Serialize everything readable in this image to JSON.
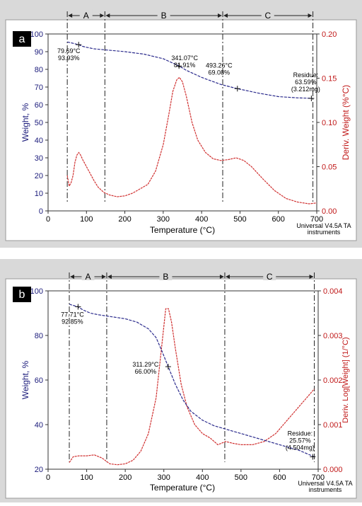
{
  "chart_data": [
    {
      "panel_label": "a",
      "type": "line",
      "xlabel": "Temperature (°C)",
      "ylabel": "Weight, %",
      "y2label": "Deriv. Weight (%°C)",
      "xlim": [
        0,
        700
      ],
      "ylim": [
        0,
        100
      ],
      "y2lim": [
        0,
        0.2
      ],
      "x_ticks": [
        "0",
        "100",
        "200",
        "300",
        "400",
        "500",
        "600",
        "700"
      ],
      "y_ticks": [
        "0",
        "10",
        "20",
        "30",
        "40",
        "50",
        "60",
        "70",
        "80",
        "90",
        "100"
      ],
      "y2_ticks": [
        "0.00",
        "0.05",
        "0.10",
        "0.15",
        "0.20"
      ],
      "regions": [
        {
          "label": "A",
          "from": 50,
          "to": 148
        },
        {
          "label": "B",
          "from": 148,
          "to": 455
        },
        {
          "label": "C",
          "from": 455,
          "to": 690
        }
      ],
      "weight_series": {
        "color": "#2a2a8c",
        "points": [
          [
            50,
            95.5
          ],
          [
            60,
            95
          ],
          [
            70,
            94.5
          ],
          [
            79.69,
            93.93
          ],
          [
            90,
            93
          ],
          [
            100,
            92.5
          ],
          [
            120,
            91.6
          ],
          [
            150,
            91
          ],
          [
            200,
            90
          ],
          [
            250,
            88.6
          ],
          [
            300,
            86
          ],
          [
            341.07,
            81.91
          ],
          [
            360,
            79.5
          ],
          [
            400,
            75.5
          ],
          [
            450,
            71.5
          ],
          [
            493.26,
            69.08
          ],
          [
            550,
            66.5
          ],
          [
            600,
            64.6
          ],
          [
            650,
            63.9
          ],
          [
            690,
            63.59
          ]
        ]
      },
      "deriv_series": {
        "color": "#d03030",
        "points": [
          [
            50,
            0.04
          ],
          [
            55,
            0.028
          ],
          [
            60,
            0.032
          ],
          [
            65,
            0.04
          ],
          [
            70,
            0.055
          ],
          [
            75,
            0.063
          ],
          [
            80,
            0.066
          ],
          [
            85,
            0.063
          ],
          [
            90,
            0.058
          ],
          [
            100,
            0.05
          ],
          [
            110,
            0.042
          ],
          [
            120,
            0.034
          ],
          [
            130,
            0.027
          ],
          [
            145,
            0.021
          ],
          [
            160,
            0.018
          ],
          [
            180,
            0.016
          ],
          [
            200,
            0.017
          ],
          [
            220,
            0.02
          ],
          [
            240,
            0.025
          ],
          [
            260,
            0.03
          ],
          [
            280,
            0.045
          ],
          [
            300,
            0.075
          ],
          [
            315,
            0.11
          ],
          [
            325,
            0.135
          ],
          [
            335,
            0.148
          ],
          [
            342,
            0.151
          ],
          [
            350,
            0.146
          ],
          [
            360,
            0.13
          ],
          [
            375,
            0.1
          ],
          [
            390,
            0.08
          ],
          [
            410,
            0.066
          ],
          [
            430,
            0.059
          ],
          [
            450,
            0.057
          ],
          [
            470,
            0.058
          ],
          [
            490,
            0.06
          ],
          [
            510,
            0.057
          ],
          [
            530,
            0.05
          ],
          [
            560,
            0.036
          ],
          [
            590,
            0.023
          ],
          [
            620,
            0.014
          ],
          [
            650,
            0.01
          ],
          [
            680,
            0.008
          ],
          [
            700,
            0.009
          ]
        ]
      },
      "annotations": [
        {
          "temp": "79.69°C",
          "weight": "93.93%"
        },
        {
          "temp": "341.07°C",
          "weight": "81.91%"
        },
        {
          "temp": "493.26°C",
          "weight": "69.08%"
        },
        {
          "temp": "Residue:",
          "weight": "63.59%",
          "mass": "(3.212mg)"
        }
      ],
      "footnote": [
        "Universal V4.5A TA",
        "instruments"
      ]
    },
    {
      "panel_label": "b",
      "type": "line",
      "xlabel": "Temperature (°C)",
      "ylabel": "Weight, %",
      "y2label": "Deriv. Log[Weight] (1/°C)",
      "xlim": [
        0,
        700
      ],
      "ylim": [
        20,
        100
      ],
      "y2lim": [
        0,
        0.004
      ],
      "x_ticks": [
        "0",
        "100",
        "200",
        "300",
        "400",
        "500",
        "600",
        "700"
      ],
      "y_ticks": [
        "20",
        "40",
        "60",
        "80",
        "100"
      ],
      "y2_ticks": [
        "0.000",
        "0.001",
        "0.002",
        "0.003",
        "0.004"
      ],
      "regions": [
        {
          "label": "A",
          "from": 55,
          "to": 152
        },
        {
          "label": "B",
          "from": 152,
          "to": 458
        },
        {
          "label": "C",
          "from": 458,
          "to": 690
        }
      ],
      "weight_series": {
        "color": "#2a2a8c",
        "points": [
          [
            55,
            94
          ],
          [
            65,
            93.5
          ],
          [
            77.71,
            92.85
          ],
          [
            90,
            91.5
          ],
          [
            110,
            90
          ],
          [
            130,
            89.3
          ],
          [
            160,
            88.5
          ],
          [
            200,
            87.5
          ],
          [
            230,
            86
          ],
          [
            260,
            83
          ],
          [
            280,
            79
          ],
          [
            295,
            73
          ],
          [
            311.29,
            66
          ],
          [
            330,
            58
          ],
          [
            350,
            51
          ],
          [
            370,
            46
          ],
          [
            400,
            42
          ],
          [
            430,
            39.5
          ],
          [
            460,
            38
          ],
          [
            500,
            36
          ],
          [
            550,
            33.5
          ],
          [
            600,
            31
          ],
          [
            650,
            28.5
          ],
          [
            690,
            25.57
          ]
        ]
      },
      "deriv_series": {
        "color": "#d03030",
        "points": [
          [
            55,
            0.00015
          ],
          [
            65,
            0.00028
          ],
          [
            80,
            0.0003
          ],
          [
            100,
            0.0003
          ],
          [
            120,
            0.00032
          ],
          [
            140,
            0.00025
          ],
          [
            160,
            0.00012
          ],
          [
            180,
            0.0001
          ],
          [
            200,
            0.00012
          ],
          [
            220,
            0.0002
          ],
          [
            240,
            0.0004
          ],
          [
            260,
            0.0008
          ],
          [
            280,
            0.0016
          ],
          [
            295,
            0.0028
          ],
          [
            305,
            0.0036
          ],
          [
            312,
            0.0036
          ],
          [
            320,
            0.0033
          ],
          [
            330,
            0.0027
          ],
          [
            345,
            0.0019
          ],
          [
            360,
            0.0014
          ],
          [
            380,
            0.001
          ],
          [
            400,
            0.0008
          ],
          [
            420,
            0.0007
          ],
          [
            440,
            0.00055
          ],
          [
            460,
            0.00062
          ],
          [
            480,
            0.00058
          ],
          [
            500,
            0.00055
          ],
          [
            530,
            0.00055
          ],
          [
            560,
            0.00062
          ],
          [
            590,
            0.0008
          ],
          [
            620,
            0.0011
          ],
          [
            650,
            0.0014
          ],
          [
            680,
            0.0017
          ],
          [
            690,
            0.0018
          ]
        ]
      },
      "annotations": [
        {
          "temp": "77.71°C",
          "weight": "92.85%"
        },
        {
          "temp": "311.29°C",
          "weight": "66.00%"
        },
        {
          "temp": "Residue:",
          "weight": "25.57%",
          "mass": "(4.504mg)"
        }
      ],
      "footnote": [
        "Universal V4.5A TA",
        "instruments"
      ]
    }
  ]
}
